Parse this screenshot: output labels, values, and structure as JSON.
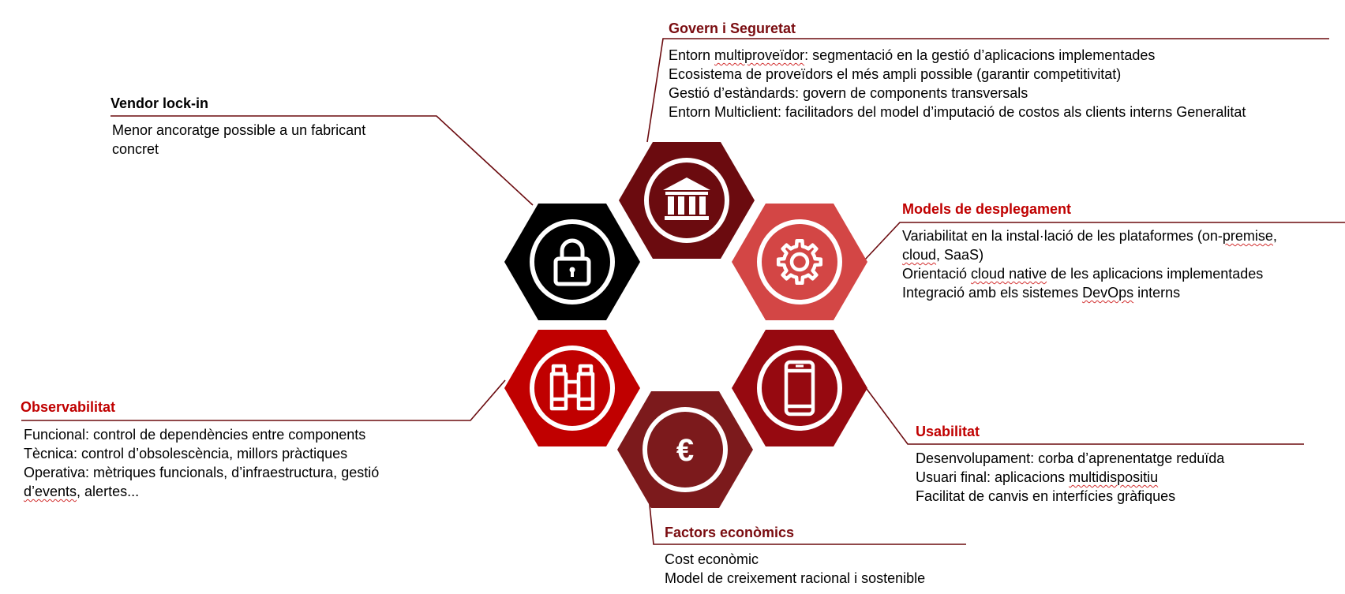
{
  "colors": {
    "black": "#000000",
    "dark_maroon": "#6b0b0f",
    "coral": "#d34645",
    "red": "#c00000",
    "deep_red": "#960910",
    "brown_red": "#7c1a1c",
    "title_dark": "#7a0c10",
    "title_red": "#c00000",
    "connector": "#6b0b0f"
  },
  "hexagons": [
    {
      "id": "vendor",
      "color": "#000000",
      "icon": "lock-icon"
    },
    {
      "id": "govern",
      "color": "#6b0b0f",
      "icon": "bank-icon"
    },
    {
      "id": "models",
      "color": "#d34645",
      "icon": "gear-icon"
    },
    {
      "id": "observ",
      "color": "#c00000",
      "icon": "binoculars-icon"
    },
    {
      "id": "usab",
      "color": "#960910",
      "icon": "smartphone-icon"
    },
    {
      "id": "factors",
      "color": "#7c1a1c",
      "icon": "euro-icon"
    }
  ],
  "euro_symbol": "€",
  "sections": {
    "govern": {
      "title": "Govern i Seguretat",
      "lines": [
        [
          "Entorn ",
          {
            "sq": "multiproveïdor"
          },
          ": segmentació en la gestió d’aplicacions implementades"
        ],
        [
          "Ecosistema de proveïdors el més ampli possible (garantir competitivitat)"
        ],
        [
          "Gestió d’estàndards: govern de components transversals"
        ],
        [
          "Entorn Multiclient: facilitadors del model d’imputació de costos als clients interns Generalitat"
        ]
      ]
    },
    "vendor": {
      "title": "Vendor lock-in",
      "lines": [
        [
          "Menor ancoratge possible a un fabricant"
        ],
        [
          "concret"
        ]
      ]
    },
    "models": {
      "title": "Models de desplegament",
      "lines": [
        [
          "Variabilitat en la instal·lació de les plataformes (on-",
          {
            "sq": "premise"
          },
          ","
        ],
        [
          {
            "sq": "cloud"
          },
          ", SaaS)"
        ],
        [
          "Orientació ",
          {
            "sq": "cloud native"
          },
          " de les aplicacions implementades"
        ],
        [
          "Integració amb els sistemes ",
          {
            "sq": "DevOps"
          },
          " interns"
        ]
      ]
    },
    "observ": {
      "title": "Observabilitat",
      "lines": [
        [
          "Funcional: control de dependències entre components"
        ],
        [
          "Tècnica: control d’obsolescència, millors pràctiques"
        ],
        [
          "Operativa: mètriques funcionals, d’infraestructura, gestió"
        ],
        [
          {
            "sq": "d’events"
          },
          ", alertes..."
        ]
      ]
    },
    "usab": {
      "title": "Usabilitat",
      "lines": [
        [
          "Desenvolupament: corba d’aprenentatge reduïda"
        ],
        [
          "Usuari final: aplicacions ",
          {
            "sq": "multidispositiu"
          }
        ],
        [
          "Facilitat de canvis en interfícies gràfiques"
        ]
      ]
    },
    "factors": {
      "title": "Factors econòmics",
      "lines": [
        [
          "Cost econòmic"
        ],
        [
          "Model de creixement racional i sostenible"
        ]
      ]
    }
  }
}
